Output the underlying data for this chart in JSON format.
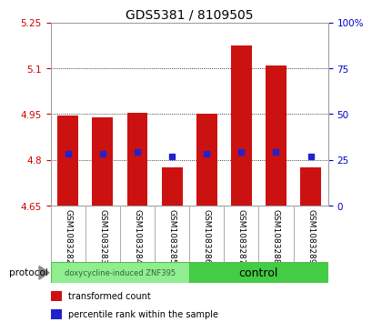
{
  "title": "GDS5381 / 8109505",
  "categories": [
    "GSM1083282",
    "GSM1083283",
    "GSM1083284",
    "GSM1083285",
    "GSM1083286",
    "GSM1083287",
    "GSM1083288",
    "GSM1083289"
  ],
  "bar_bottom": 4.65,
  "bar_tops": [
    4.945,
    4.94,
    4.955,
    4.775,
    4.95,
    5.175,
    5.11,
    4.775
  ],
  "blue_y": [
    4.82,
    4.82,
    4.825,
    4.81,
    4.82,
    4.825,
    4.825,
    4.81
  ],
  "ylim": [
    4.65,
    5.25
  ],
  "yticks_left": [
    4.65,
    4.8,
    4.95,
    5.1,
    5.25
  ],
  "yticks_right": [
    0,
    25,
    50,
    75,
    100
  ],
  "yticks_right_labels": [
    "0",
    "25",
    "50",
    "75",
    "100%"
  ],
  "left_tick_color": "#cc0000",
  "right_tick_color": "#0000cc",
  "bar_color": "#cc1111",
  "blue_color": "#2222cc",
  "group1_label": "doxycycline-induced ZNF395",
  "group2_label": "control",
  "group1_count": 4,
  "group2_count": 4,
  "protocol_label": "protocol",
  "legend_red": "transformed count",
  "legend_blue": "percentile rank within the sample",
  "plot_bg": "#ffffff",
  "label_bg": "#d8d8d8",
  "group_bg1": "#90ee90",
  "group_bg2": "#44cc44",
  "bar_width": 0.6,
  "title_fontsize": 10,
  "tick_fontsize": 7.5,
  "label_fontsize": 6.5,
  "legend_fontsize": 7
}
